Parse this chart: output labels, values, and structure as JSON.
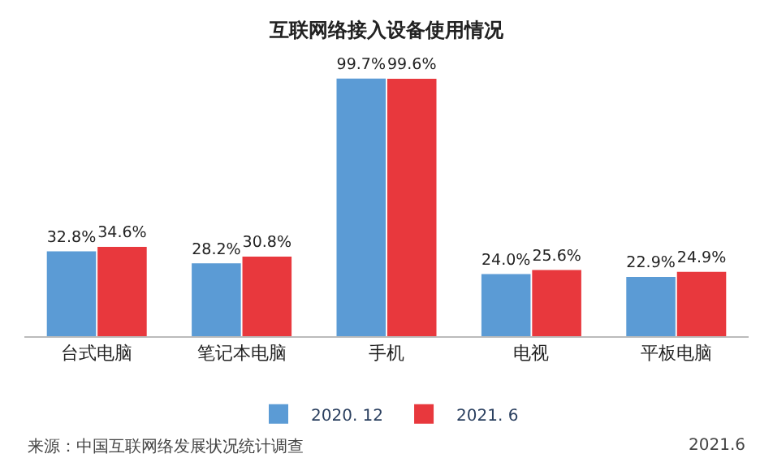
{
  "chart_data": {
    "type": "bar",
    "title": "互联网络接入设备使用情况",
    "categories": [
      "台式电脑",
      "笔记本电脑",
      "手机",
      "电视",
      "平板电脑"
    ],
    "series": [
      {
        "name": "2020. 12",
        "color": "#5b9bd5",
        "values": [
          32.8,
          28.2,
          99.7,
          24.0,
          22.9
        ],
        "value_labels": [
          "32.8%",
          "28.2%",
          "99.7%",
          "24.0%",
          "22.9%"
        ]
      },
      {
        "name": "2021. 6",
        "color": "#e8383d",
        "values": [
          34.6,
          30.8,
          99.6,
          25.6,
          24.9
        ],
        "value_labels": [
          "34.6%",
          "30.8%",
          "99.6%",
          "25.6%",
          "24.9%"
        ]
      }
    ],
    "legend": "bottom",
    "annotations": [
      "来源：中国互联网络发展状况统计调查",
      "2021.6"
    ]
  }
}
